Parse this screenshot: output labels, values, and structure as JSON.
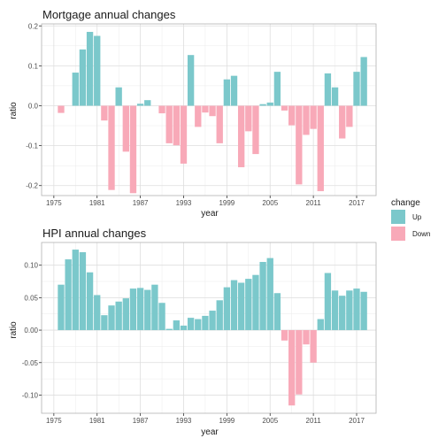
{
  "legend": {
    "title": "change",
    "items": [
      {
        "key": "Up",
        "label": "Up",
        "color": "#7BC8CB"
      },
      {
        "key": "Down",
        "label": "Down",
        "color": "#F8A9B8"
      }
    ]
  },
  "chart_data": [
    {
      "type": "bar",
      "title": "Mortgage annual changes",
      "xlabel": "year",
      "ylabel": "ratio",
      "ylim": [
        -0.225,
        0.205
      ],
      "xlim": [
        1973.3,
        2019.7
      ],
      "x_ticks": [
        1975,
        1981,
        1987,
        1993,
        1999,
        2005,
        2011,
        2017
      ],
      "y_ticks": [
        -0.2,
        -0.1,
        0.0,
        0.1,
        0.2
      ],
      "y_tick_labels": [
        "-0.2",
        "-0.1",
        "0.0",
        "0.1",
        "0.2"
      ],
      "grid": true,
      "x": [
        1976,
        1977,
        1978,
        1979,
        1980,
        1981,
        1982,
        1983,
        1984,
        1985,
        1986,
        1987,
        1988,
        1989,
        1990,
        1991,
        1992,
        1993,
        1994,
        1995,
        1996,
        1997,
        1998,
        1999,
        2000,
        2001,
        2002,
        2003,
        2004,
        2005,
        2006,
        2007,
        2008,
        2009,
        2010,
        2011,
        2012,
        2013,
        2014,
        2015,
        2016,
        2017,
        2018
      ],
      "values": [
        -0.018,
        0,
        0.083,
        0.141,
        0.185,
        0.175,
        -0.037,
        -0.211,
        0.046,
        -0.115,
        -0.219,
        0.005,
        0.014,
        0,
        -0.019,
        -0.094,
        -0.099,
        -0.145,
        0.127,
        -0.053,
        -0.017,
        -0.026,
        -0.094,
        0.066,
        0.075,
        -0.154,
        -0.064,
        -0.121,
        0.004,
        0.008,
        0.085,
        -0.012,
        -0.049,
        -0.197,
        -0.073,
        -0.058,
        -0.214,
        0.081,
        0.046,
        -0.082,
        -0.053,
        0.085,
        0.122
      ]
    },
    {
      "type": "bar",
      "title": "HPI annual changes",
      "xlabel": "year",
      "ylabel": "ratio",
      "ylim": [
        -0.128,
        0.135
      ],
      "xlim": [
        1973.3,
        2019.7
      ],
      "x_ticks": [
        1975,
        1981,
        1987,
        1993,
        1999,
        2005,
        2011,
        2017
      ],
      "y_ticks": [
        -0.1,
        -0.05,
        0.0,
        0.05,
        0.1
      ],
      "y_tick_labels": [
        "-0.10",
        "-0.05",
        "0.00",
        "0.05",
        "0.10"
      ],
      "grid": true,
      "x": [
        1976,
        1977,
        1978,
        1979,
        1980,
        1981,
        1982,
        1983,
        1984,
        1985,
        1986,
        1987,
        1988,
        1989,
        1990,
        1991,
        1992,
        1993,
        1994,
        1995,
        1996,
        1997,
        1998,
        1999,
        2000,
        2001,
        2002,
        2003,
        2004,
        2005,
        2006,
        2007,
        2008,
        2009,
        2010,
        2011,
        2012,
        2013,
        2014,
        2015,
        2016,
        2017,
        2018
      ],
      "values": [
        0.07,
        0.109,
        0.124,
        0.12,
        0.089,
        0.054,
        0.023,
        0.038,
        0.044,
        0.049,
        0.064,
        0.065,
        0.062,
        0.07,
        0.042,
        0.002,
        0.015,
        0.007,
        0.019,
        0.017,
        0.022,
        0.03,
        0.046,
        0.066,
        0.077,
        0.073,
        0.079,
        0.085,
        0.105,
        0.111,
        0.057,
        -0.016,
        -0.116,
        -0.099,
        -0.022,
        -0.05,
        0.017,
        0.088,
        0.061,
        0.053,
        0.061,
        0.064,
        0.059
      ]
    }
  ]
}
